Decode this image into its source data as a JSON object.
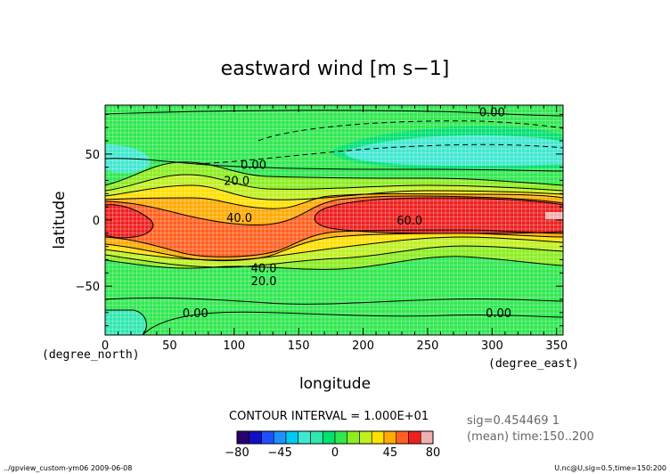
{
  "chart_data": {
    "type": "heatmap",
    "title": "eastward wind [m s−1]",
    "xlabel": "longitude",
    "ylabel": "latitude",
    "x_unit": "(degree_east)",
    "y_unit": "(degree_north)",
    "xlim": [
      0,
      355
    ],
    "ylim": [
      -87,
      87
    ],
    "x_ticks": [
      0,
      50,
      100,
      150,
      200,
      250,
      300,
      350
    ],
    "y_ticks": [
      50,
      0,
      -50
    ],
    "contour_interval_text": "CONTOUR INTERVAL = 1.000E+01",
    "contour_labels": [
      {
        "text": "0.00",
        "lon": 300,
        "lat": 82
      },
      {
        "text": "0.00",
        "lon": 115,
        "lat": 42
      },
      {
        "text": "20.0",
        "lon": 102,
        "lat": 30
      },
      {
        "text": "40.0",
        "lon": 104,
        "lat": 2
      },
      {
        "text": "60.0",
        "lon": 236,
        "lat": 0
      },
      {
        "text": "40.0",
        "lon": 123,
        "lat": -36
      },
      {
        "text": "20.0",
        "lon": 123,
        "lat": -46
      },
      {
        "text": "0.00",
        "lon": 70,
        "lat": -70
      },
      {
        "text": "0.00",
        "lon": 305,
        "lat": -70
      }
    ],
    "colorbar": {
      "levels": [
        -80,
        -70,
        -60,
        -50,
        -40,
        -30,
        -20,
        -10,
        0,
        10,
        20,
        30,
        40,
        50,
        60,
        70,
        80
      ],
      "colors": [
        "#2a0070",
        "#1010c8",
        "#1e50ff",
        "#1e90ff",
        "#00c8f0",
        "#40e8d0",
        "#30e8b0",
        "#00e070",
        "#30e850",
        "#8ced20",
        "#c0f020",
        "#ffe000",
        "#ffaa00",
        "#ff6020",
        "#ee2020",
        "#f0b0b0"
      ],
      "tick_labels": [
        "−80",
        "−45",
        "0",
        "45",
        "80"
      ],
      "tick_values": [
        -80,
        -45,
        0,
        45,
        80
      ]
    },
    "info_lines": [
      "sig=0.454469  1",
      "(mean) time:150..200"
    ],
    "footer_left": "../gpview_custom-ym06  2009-06-08",
    "footer_right": "U.nc@U,sig=0.5,time=150:200"
  }
}
